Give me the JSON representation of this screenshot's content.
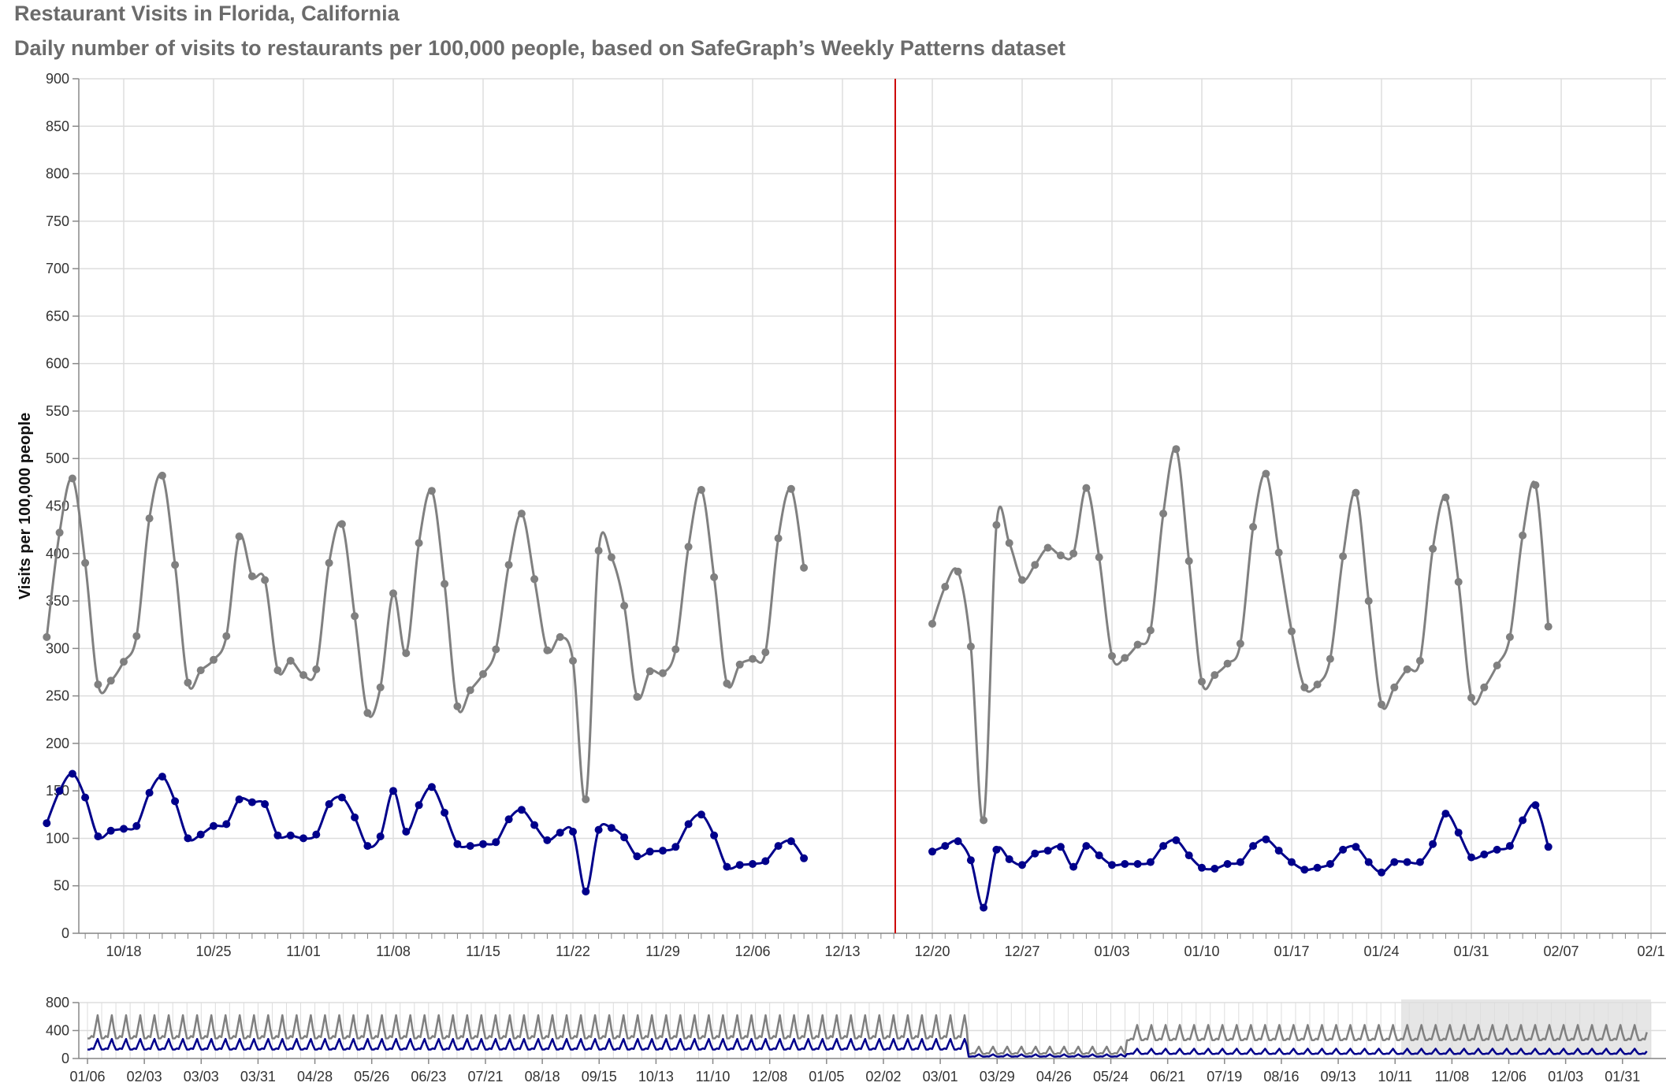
{
  "title": "Restaurant Visits in Florida, California",
  "subtitle": "Daily number of visits to restaurants per 100,000 people, based on SafeGraph’s Weekly Patterns dataset",
  "colors": {
    "grey_series": "#808080",
    "blue_series": "#00008b",
    "divider": "#cc0000",
    "grid": "#dddddd",
    "brush": "#e6e6e6"
  },
  "chart_data": [
    {
      "type": "line",
      "title": "",
      "xlabel": "",
      "ylabel": "Visits per 100,000 people",
      "ylim": [
        0,
        900
      ],
      "yticks": [
        "0",
        "50",
        "100",
        "150",
        "200",
        "250",
        "300",
        "350",
        "400",
        "450",
        "500",
        "550",
        "600",
        "650",
        "700",
        "750",
        "800",
        "850",
        "900"
      ],
      "xticks": [
        "10/18",
        "10/25",
        "11/01",
        "11/08",
        "11/15",
        "11/22",
        "11/29",
        "12/06",
        "12/13",
        "12/20",
        "12/27",
        "01/03",
        "01/10",
        "01/17",
        "01/24",
        "01/31",
        "02/07",
        "02/1"
      ],
      "grid": true,
      "legend": "none",
      "segments": [
        {
          "x_start": "2019-10-14",
          "series": [
            {
              "values": [
                312,
                422,
                479,
                390,
                262,
                266,
                286,
                313,
                437,
                482,
                388,
                264,
                277,
                288,
                313,
                418,
                376,
                372,
                277,
                287,
                272,
                278,
                390,
                431,
                334,
                232,
                259,
                358,
                295,
                411,
                466,
                368,
                239,
                256,
                273,
                299,
                388,
                442,
                373,
                298,
                312,
                287,
                141,
                403,
                396,
                345,
                249,
                276,
                274,
                299,
                407,
                467,
                375,
                263,
                283,
                289,
                296,
                416,
                468,
                385
              ]
            },
            {
              "values": [
                116,
                150,
                168,
                143,
                102,
                108,
                110,
                113,
                148,
                165,
                139,
                100,
                104,
                113,
                115,
                141,
                138,
                136,
                103,
                103,
                100,
                104,
                136,
                143,
                122,
                92,
                102,
                150,
                107,
                135,
                154,
                127,
                94,
                92,
                94,
                96,
                120,
                130,
                114,
                98,
                106,
                107,
                44,
                109,
                111,
                101,
                81,
                86,
                87,
                91,
                115,
                125,
                103,
                70,
                72,
                73,
                76,
                92,
                97,
                79
              ]
            }
          ]
        },
        {
          "x_start": "2020-12-20",
          "series": [
            {
              "values": [
                326,
                365,
                381,
                302,
                119,
                430,
                411,
                372,
                388,
                406,
                398,
                400,
                469,
                396,
                292,
                290,
                304,
                319,
                442,
                510,
                392,
                265,
                272,
                284,
                305,
                428,
                484,
                401,
                318,
                259,
                262,
                289,
                397,
                464,
                350,
                241,
                259,
                278,
                287,
                405,
                459,
                370,
                248,
                259,
                282,
                312,
                419,
                472,
                323
              ]
            },
            {
              "values": [
                86,
                92,
                97,
                77,
                27,
                88,
                78,
                72,
                84,
                87,
                91,
                70,
                92,
                82,
                72,
                73,
                73,
                75,
                92,
                98,
                82,
                69,
                68,
                73,
                75,
                92,
                99,
                87,
                75,
                67,
                69,
                73,
                88,
                91,
                75,
                64,
                75,
                75,
                75,
                94,
                126,
                106,
                80,
                83,
                88,
                92,
                119,
                135,
                91
              ]
            }
          ]
        }
      ]
    },
    {
      "type": "line",
      "title": "",
      "xlabel": "",
      "ylabel": "",
      "ylim": [
        0,
        800
      ],
      "yticks": [
        "0",
        "400",
        "800"
      ],
      "xticks": [
        "01/06",
        "02/03",
        "03/03",
        "03/31",
        "04/28",
        "05/26",
        "06/23",
        "07/21",
        "08/18",
        "09/15",
        "10/13",
        "11/10",
        "12/08",
        "01/05",
        "02/02",
        "03/01",
        "03/29",
        "04/26",
        "05/24",
        "06/21",
        "07/19",
        "08/16",
        "09/13",
        "10/11",
        "11/08",
        "12/06",
        "01/03",
        "01/31"
      ],
      "series": [
        {
          "name": "",
          "summary_by_period": [
            {
              "from": "2019-01-06",
              "to": "2020-03-14",
              "weekly_low": 270,
              "weekly_high": 620
            },
            {
              "from": "2020-03-15",
              "to": "2020-05-31",
              "weekly_low": 60,
              "weekly_high": 170
            },
            {
              "from": "2020-06-01",
              "to": "2021-02-12",
              "weekly_low": 250,
              "weekly_high": 480
            }
          ]
        },
        {
          "name": "",
          "summary_by_period": [
            {
              "from": "2019-01-06",
              "to": "2020-03-14",
              "weekly_low": 120,
              "weekly_high": 280
            },
            {
              "from": "2020-03-15",
              "to": "2020-05-31",
              "weekly_low": 25,
              "weekly_high": 60
            },
            {
              "from": "2020-06-01",
              "to": "2021-02-12",
              "weekly_low": 60,
              "weekly_high": 140
            }
          ]
        }
      ],
      "brush": {
        "from": "2020-10-14",
        "to": "2021-02-14"
      },
      "grid": true
    }
  ]
}
